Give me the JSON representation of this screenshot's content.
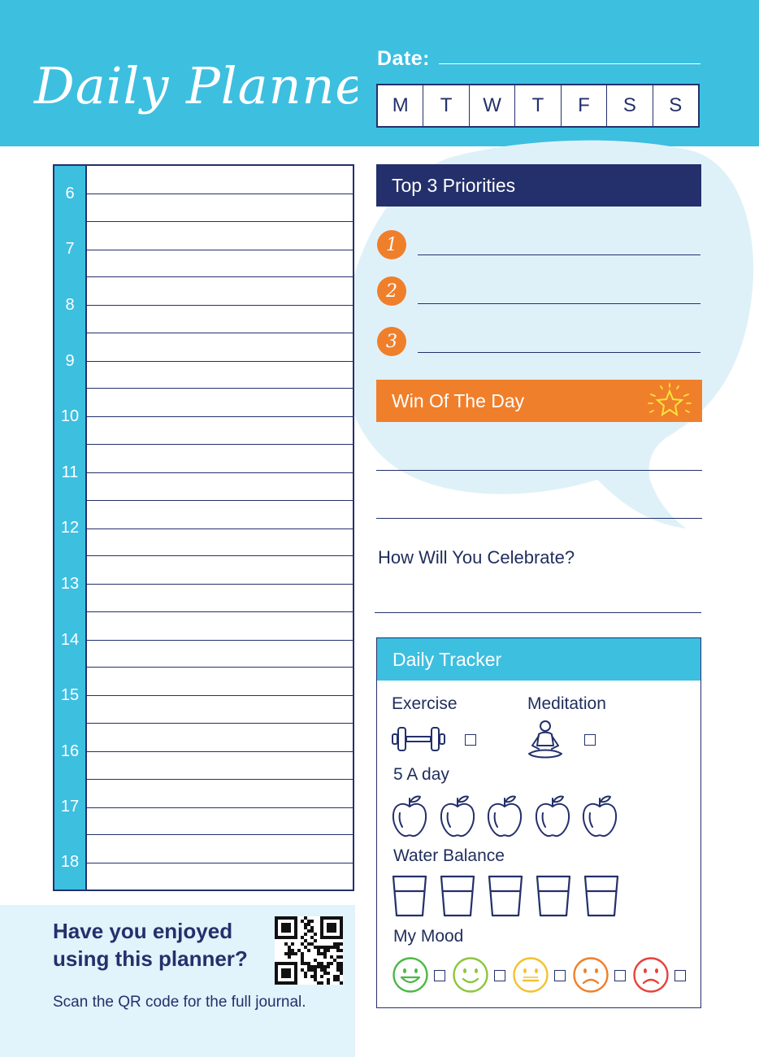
{
  "header": {
    "title": "Daily Planner",
    "date_label": "Date:",
    "days": [
      "M",
      "T",
      "W",
      "T",
      "F",
      "S",
      "S"
    ]
  },
  "schedule": {
    "hours": [
      "6",
      "7",
      "8",
      "9",
      "10",
      "11",
      "12",
      "13",
      "14",
      "15",
      "16",
      "17",
      "18"
    ]
  },
  "priorities": {
    "title": "Top 3 Priorities",
    "numbers": [
      "1",
      "2",
      "3"
    ]
  },
  "win": {
    "title": "Win Of The Day",
    "icon": "star-icon"
  },
  "celebrate": {
    "question": "How Will You Celebrate?"
  },
  "tracker": {
    "title": "Daily Tracker",
    "exercise_label": "Exercise",
    "meditation_label": "Meditation",
    "five_a_day_label": "5 A day",
    "water_label": "Water Balance",
    "mood_label": "My Mood",
    "apple_count": 5,
    "glass_count": 5,
    "mood_colors": [
      "#4cb848",
      "#8dc63f",
      "#f2c230",
      "#f07f2b",
      "#e8413c"
    ]
  },
  "footer": {
    "question": "Have you enjoyed using this planner?",
    "cta": "Scan the QR code for the full journal."
  },
  "colors": {
    "cyan": "#3dbfe0",
    "navy": "#24306b",
    "orange": "#f07f2b",
    "light_blue": "#e1f3fb"
  }
}
